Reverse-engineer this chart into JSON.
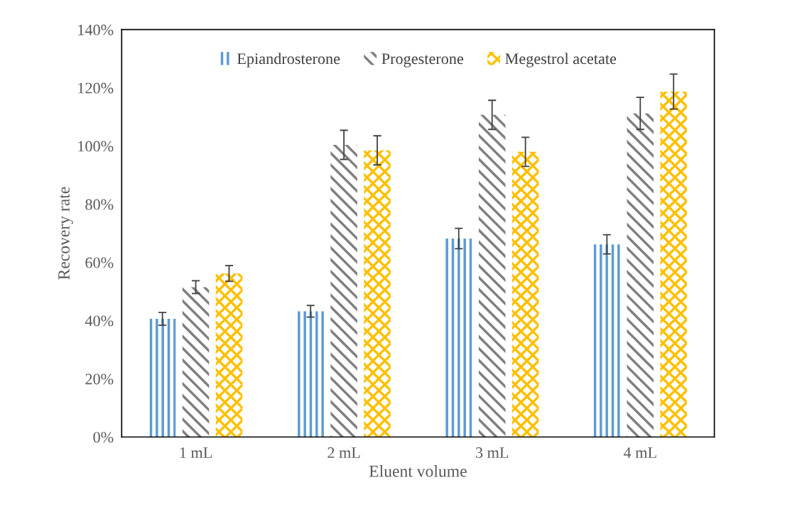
{
  "chart_data": {
    "type": "bar",
    "xlabel": "Eluent volume",
    "ylabel": "Recovery rate",
    "categories": [
      "1 mL",
      "2 mL",
      "3 mL",
      "4 mL"
    ],
    "series": [
      {
        "name": "Epiandrosterone",
        "color": "#5b9bd5",
        "values": [
          40.6,
          43.2,
          68.2,
          66.2
        ],
        "errors": [
          2.2,
          2.0,
          3.5,
          3.3
        ]
      },
      {
        "name": "Progesterone",
        "color": "#7f7f7f",
        "values": [
          51.5,
          100.4,
          110.7,
          111.2
        ],
        "errors": [
          2.2,
          5.0,
          5.0,
          5.5
        ]
      },
      {
        "name": "Megestrol acetate",
        "color": "#ffc000",
        "values": [
          56.2,
          98.5,
          98.0,
          118.7
        ],
        "errors": [
          2.7,
          5.0,
          5.0,
          6.0
        ]
      }
    ],
    "ylim": [
      0,
      140
    ],
    "yticks": [
      {
        "value": 0,
        "label": "0%"
      },
      {
        "value": 20,
        "label": "20%"
      },
      {
        "value": 40,
        "label": "40%"
      },
      {
        "value": 60,
        "label": "60%"
      },
      {
        "value": 80,
        "label": "80%"
      },
      {
        "value": 100,
        "label": "100%"
      },
      {
        "value": 120,
        "label": "120%"
      },
      {
        "value": 140,
        "label": "140%"
      }
    ],
    "grid": false,
    "legend": "top"
  }
}
